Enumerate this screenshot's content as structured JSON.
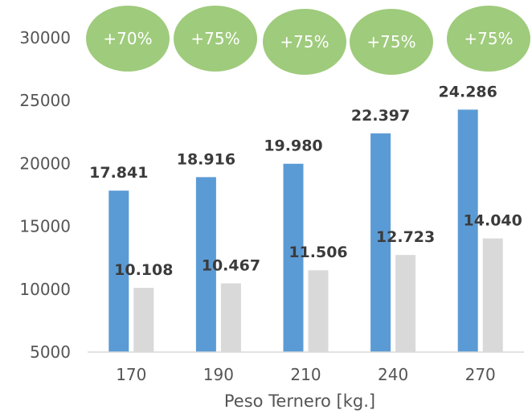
{
  "chart_data": {
    "type": "bar",
    "categories": [
      "170",
      "190",
      "210",
      "240",
      "270"
    ],
    "series": [
      {
        "values": [
          17841,
          18916,
          19980,
          22397,
          24286
        ],
        "labels": [
          "17.841",
          "18.916",
          "19.980",
          "22.397",
          "24.286"
        ],
        "color": "#5b9bd5"
      },
      {
        "values": [
          10108,
          10467,
          11506,
          12723,
          14040
        ],
        "labels": [
          "10.108",
          "10.467",
          "11.506",
          "12.723",
          "14.040"
        ],
        "color": "#d9d9d9"
      }
    ],
    "annotations": [
      "+70%",
      "+75%",
      "+75%",
      "+75%",
      "+75%"
    ],
    "annotation_color": "#9fcb7c",
    "xlabel": "Peso Ternero [kg.]",
    "ylabel": "",
    "ylim": [
      5000,
      30000
    ],
    "yticks": [
      "5000",
      "10000",
      "15000",
      "20000",
      "25000",
      "30000"
    ],
    "grid": false,
    "legend": "none"
  }
}
